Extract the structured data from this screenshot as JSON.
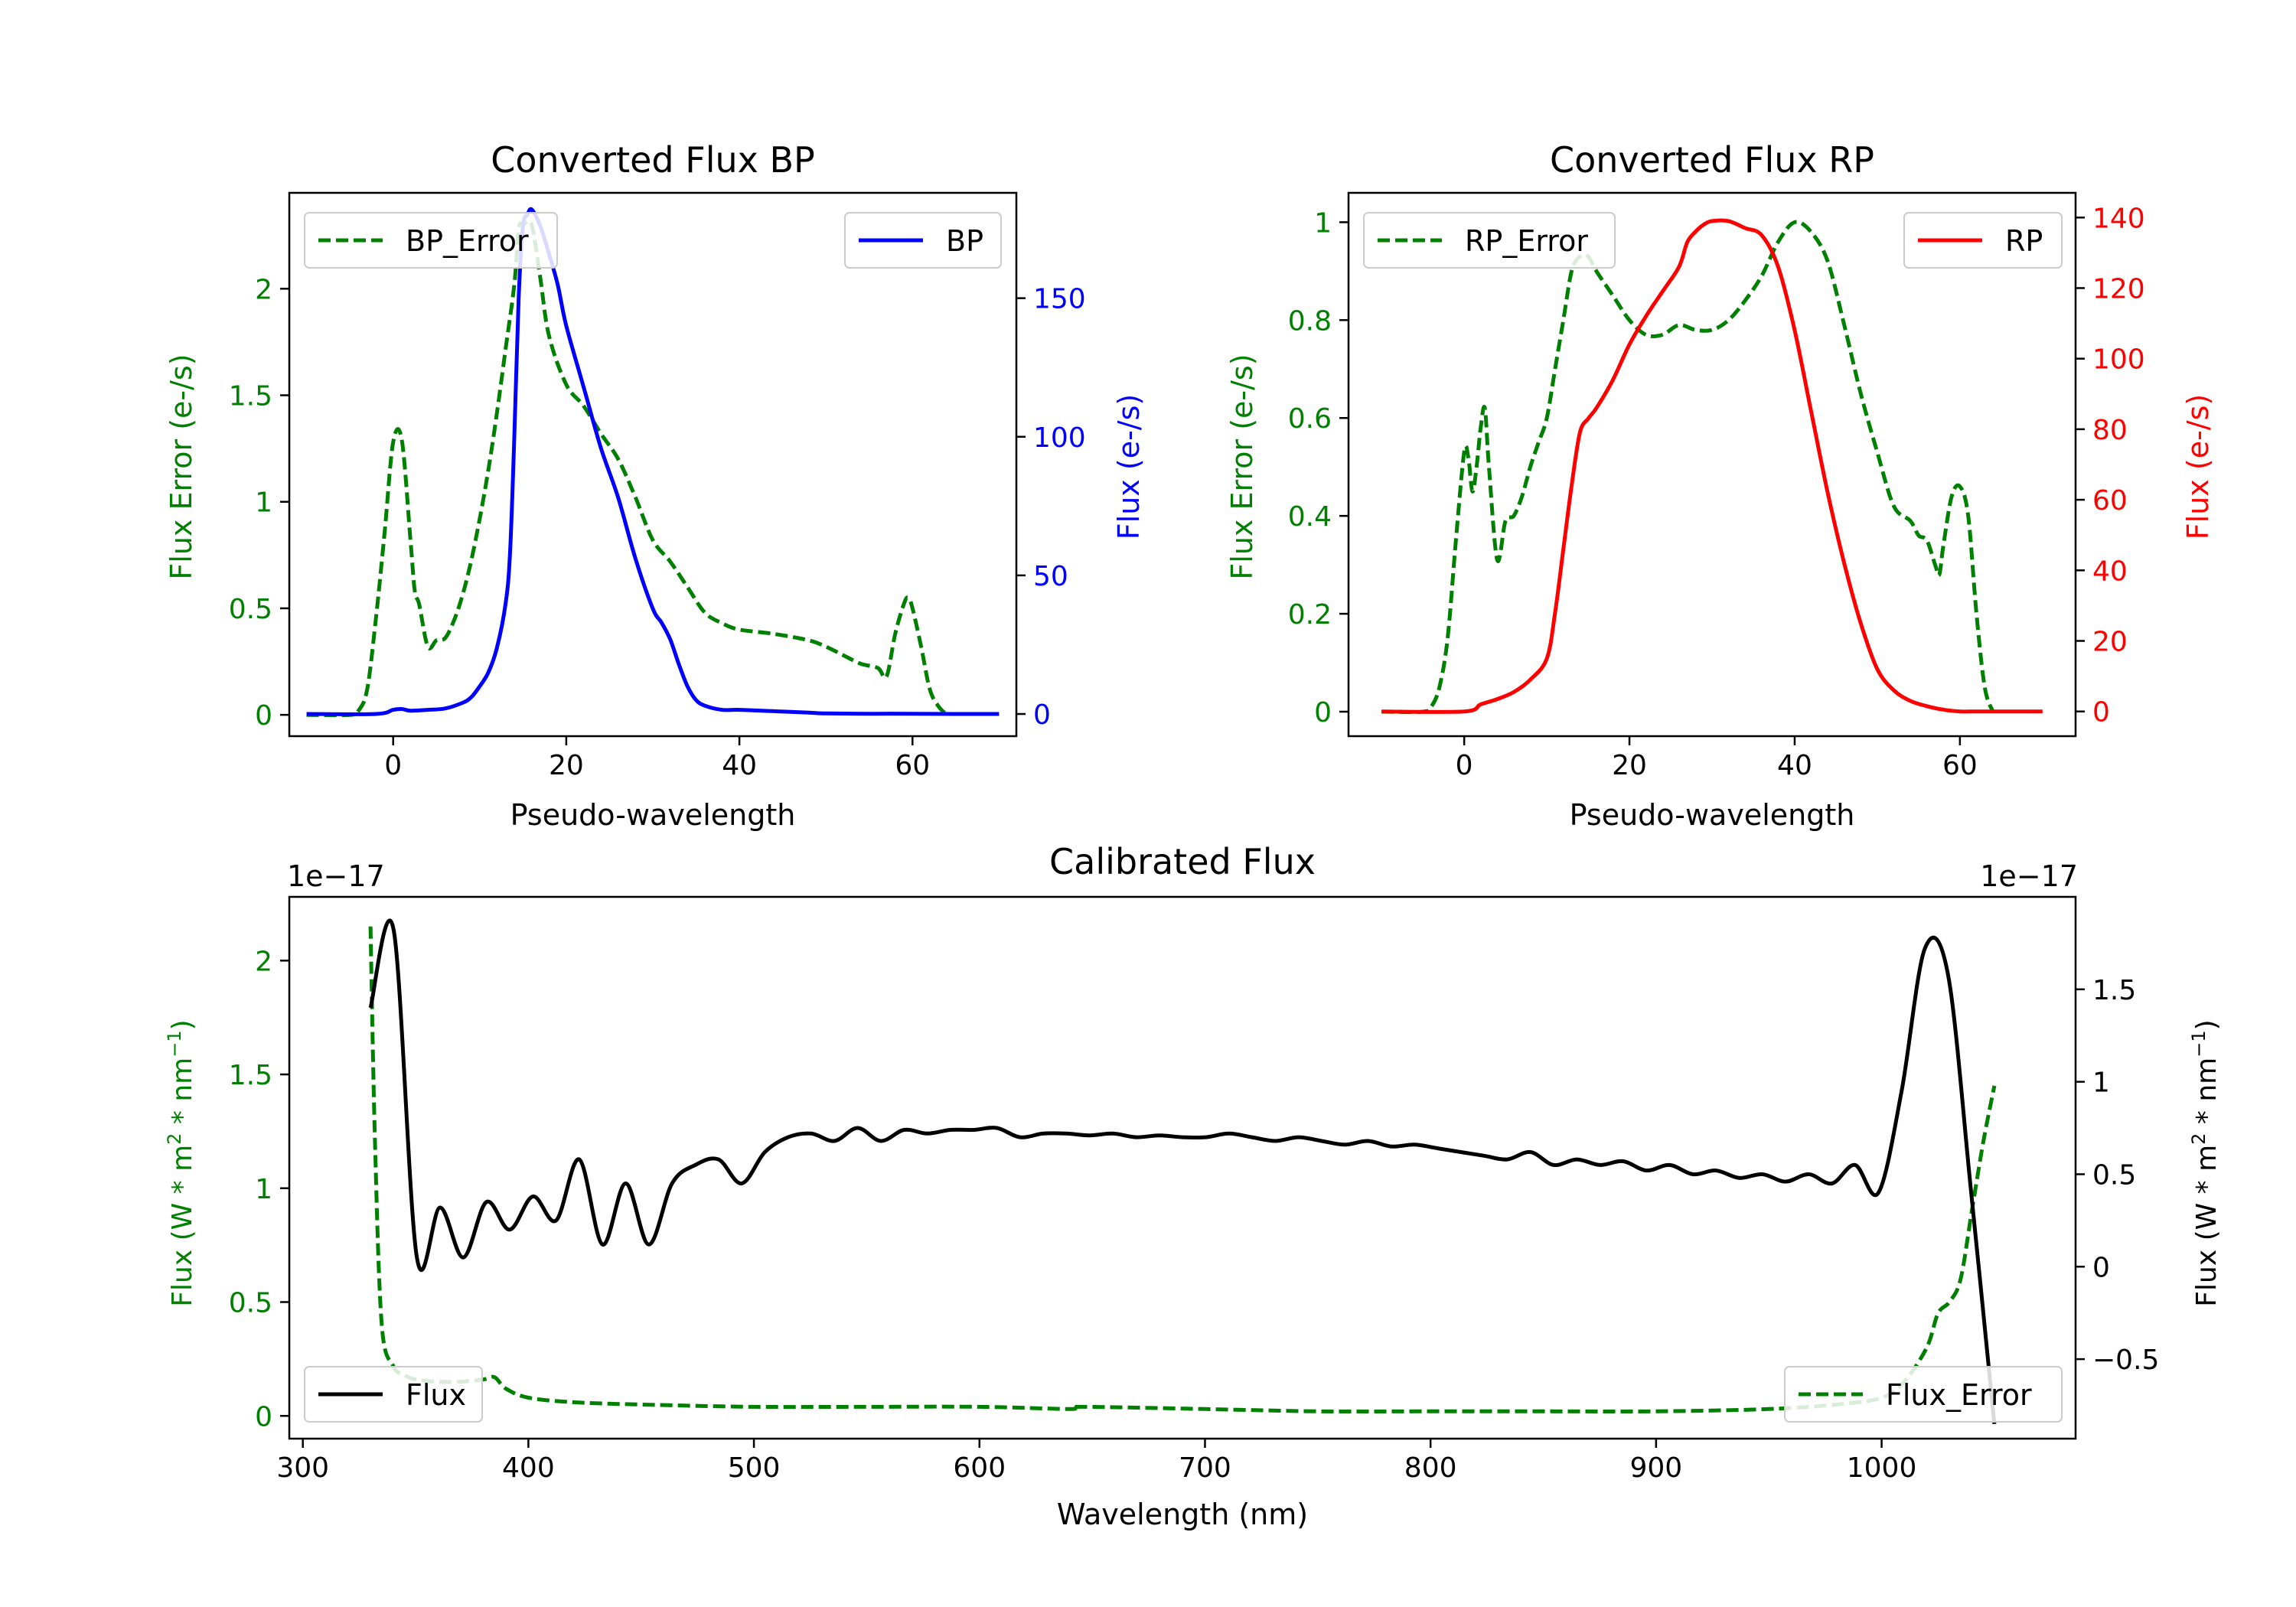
{
  "colors": {
    "error": "#008000",
    "bp": "#0000ff",
    "rp": "#ff0000",
    "flux": "#000000"
  },
  "chart_data": [
    {
      "type": "line",
      "title": "Converted Flux BP",
      "xlabel": "Pseudo-wavelength",
      "xlim": [
        -12,
        72
      ],
      "xticks": [
        0,
        20,
        40,
        60
      ],
      "ylabel_left": "Flux Error (e-/s)",
      "ylim_left": [
        -0.1,
        2.45
      ],
      "yticks_left": [
        0.0,
        0.5,
        1.0,
        1.5,
        2.0
      ],
      "ylabel_right": "Flux (e-/s)",
      "ylim_right": [
        -8,
        188
      ],
      "yticks_right": [
        0,
        50,
        100,
        150
      ],
      "series": [
        {
          "name": "BP_Error",
          "axis": "left",
          "style": "dashed",
          "color": "#008000",
          "x": [
            -10,
            -5,
            -4,
            -3,
            -2,
            -1,
            0,
            1,
            2,
            2.5,
            3,
            4,
            5,
            6,
            7,
            8,
            9,
            10,
            11,
            12,
            13,
            14,
            14.5,
            15,
            16,
            17,
            18,
            20,
            22,
            24,
            26,
            28,
            30,
            32,
            34,
            36,
            38,
            40,
            44,
            48,
            50,
            52,
            54,
            56,
            57,
            58,
            59,
            59.5,
            60,
            61,
            62,
            63,
            64
          ],
          "y": [
            0,
            0,
            0.02,
            0.12,
            0.45,
            0.85,
            1.28,
            1.29,
            0.82,
            0.58,
            0.52,
            0.32,
            0.35,
            0.36,
            0.44,
            0.56,
            0.72,
            0.92,
            1.15,
            1.42,
            1.72,
            2.02,
            2.28,
            2.3,
            2.3,
            2.05,
            1.78,
            1.55,
            1.45,
            1.32,
            1.2,
            1.02,
            0.82,
            0.72,
            0.6,
            0.48,
            0.43,
            0.4,
            0.38,
            0.35,
            0.32,
            0.28,
            0.24,
            0.22,
            0.18,
            0.38,
            0.52,
            0.55,
            0.5,
            0.32,
            0.12,
            0.04,
            0
          ],
          "ylim": [
            0,
            2.3
          ]
        },
        {
          "name": "BP",
          "axis": "right",
          "style": "solid",
          "color": "#0000ff",
          "x": [
            -10,
            -2,
            0,
            1,
            2,
            4,
            6,
            8,
            9,
            10,
            11,
            12,
            13,
            13.5,
            14,
            14.5,
            15,
            15.5,
            16,
            17,
            18,
            19,
            20,
            22,
            24,
            26,
            28,
            30,
            31,
            32,
            33,
            34,
            35,
            36,
            38,
            40,
            44,
            48,
            50,
            55,
            60,
            65,
            70
          ],
          "y": [
            0,
            0,
            1.5,
            1.8,
            1.2,
            1.5,
            2,
            4,
            6,
            10,
            15,
            24,
            40,
            58,
            100,
            150,
            176,
            180,
            182,
            176,
            166,
            155,
            140,
            118,
            96,
            78,
            56,
            38,
            33,
            27,
            18,
            10,
            5,
            3,
            1.5,
            1.5,
            1,
            0.5,
            0.2,
            0.1,
            0.1,
            0,
            0
          ],
          "ylim": [
            0,
            182
          ]
        }
      ],
      "legend": [
        {
          "label": "BP_Error",
          "position": "upper-left",
          "style": "dashed",
          "color": "#008000"
        },
        {
          "label": "BP",
          "position": "upper-right",
          "style": "solid",
          "color": "#0000ff"
        }
      ]
    },
    {
      "type": "line",
      "title": "Converted Flux RP",
      "xlabel": "Pseudo-wavelength",
      "xlim": [
        -14,
        74
      ],
      "xticks": [
        0,
        20,
        40,
        60
      ],
      "ylabel_left": "Flux Error (e-/s)",
      "ylim_left": [
        -0.05,
        1.06
      ],
      "yticks_left": [
        0.0,
        0.2,
        0.4,
        0.6,
        0.8,
        1.0
      ],
      "ylabel_right": "Flux (e-/s)",
      "ylim_right": [
        -7,
        147
      ],
      "yticks_right": [
        0,
        20,
        40,
        60,
        80,
        100,
        120,
        140
      ],
      "series": [
        {
          "name": "RP_Error",
          "axis": "left",
          "style": "dashed",
          "color": "#008000",
          "x": [
            -10,
            -5,
            -4,
            -3,
            -2,
            -1,
            0,
            0.5,
            1,
            1.5,
            2,
            2.5,
            3,
            4,
            5,
            6,
            7,
            8,
            9,
            10,
            11,
            12,
            13,
            14,
            15,
            16,
            18,
            20,
            22,
            24,
            26,
            28,
            30,
            32,
            34,
            36,
            38,
            40,
            42,
            44,
            46,
            48,
            50,
            52,
            54,
            55,
            56,
            57,
            57.5,
            58,
            59,
            60,
            61,
            62,
            63,
            64
          ],
          "y": [
            0,
            0,
            0.01,
            0.05,
            0.15,
            0.35,
            0.53,
            0.52,
            0.45,
            0.5,
            0.58,
            0.62,
            0.5,
            0.31,
            0.39,
            0.4,
            0.44,
            0.5,
            0.55,
            0.6,
            0.7,
            0.8,
            0.9,
            0.93,
            0.93,
            0.9,
            0.85,
            0.8,
            0.77,
            0.77,
            0.79,
            0.78,
            0.78,
            0.8,
            0.84,
            0.89,
            0.96,
            1.0,
            0.98,
            0.92,
            0.79,
            0.65,
            0.53,
            0.42,
            0.39,
            0.36,
            0.35,
            0.3,
            0.28,
            0.34,
            0.44,
            0.46,
            0.4,
            0.2,
            0.05,
            0
          ],
          "ylim": [
            0,
            1.0
          ]
        },
        {
          "name": "RP",
          "axis": "right",
          "style": "solid",
          "color": "#ff0000",
          "x": [
            -10,
            0,
            2,
            4,
            6,
            8,
            10,
            11,
            12,
            13,
            14,
            15,
            16,
            18,
            20,
            22,
            24,
            26,
            27,
            28,
            29,
            30,
            32,
            34,
            36,
            38,
            40,
            42,
            44,
            46,
            48,
            50,
            52,
            54,
            56,
            58,
            60,
            62,
            65,
            70
          ],
          "y": [
            0,
            0,
            2,
            3.5,
            5.5,
            9,
            15,
            28,
            46,
            64,
            79,
            83,
            86,
            94,
            104,
            112,
            119,
            126,
            133,
            136,
            138,
            139,
            139,
            137,
            135,
            126,
            108,
            85,
            62,
            42,
            25,
            12,
            6,
            3,
            1.5,
            0.5,
            0,
            0,
            0,
            0
          ],
          "ylim": [
            0,
            140
          ]
        }
      ],
      "legend": [
        {
          "label": "RP_Error",
          "position": "upper-left",
          "style": "dashed",
          "color": "#008000"
        },
        {
          "label": "RP",
          "position": "upper-right",
          "style": "solid",
          "color": "#ff0000"
        }
      ]
    },
    {
      "type": "line",
      "title": "Calibrated Flux",
      "xlabel": "Wavelength (nm)",
      "xlim": [
        294,
        1086
      ],
      "xticks": [
        300,
        400,
        500,
        600,
        700,
        800,
        900,
        1000
      ],
      "ylabel_left": "Flux (W * m^2 * nm^-1)",
      "ylim_left": [
        -0.1,
        2.28
      ],
      "yticks_left": [
        0.0,
        0.5,
        1.0,
        1.5,
        2.0
      ],
      "offset_left": "1e−17",
      "ylabel_right": "Flux (W * m^2 * nm^-1)",
      "ylim_right": [
        -0.93,
        2.0
      ],
      "yticks_right": [
        -0.5,
        0.0,
        0.5,
        1.0,
        1.5
      ],
      "offset_right": "1e−17",
      "series": [
        {
          "name": "Flux_Error",
          "axis": "left",
          "style": "dashed",
          "color": "#008000",
          "x": [
            330,
            332,
            335,
            340,
            345,
            350,
            360,
            370,
            380,
            385,
            390,
            400,
            420,
            450,
            500,
            550,
            600,
            640,
            645,
            700,
            750,
            800,
            850,
            900,
            950,
            980,
            1000,
            1010,
            1020,
            1025,
            1030,
            1035,
            1040,
            1045,
            1050
          ],
          "y": [
            2.15,
            1.2,
            0.4,
            0.22,
            0.18,
            0.16,
            0.15,
            0.15,
            0.16,
            0.17,
            0.12,
            0.08,
            0.06,
            0.05,
            0.04,
            0.04,
            0.04,
            0.03,
            0.04,
            0.03,
            0.02,
            0.02,
            0.02,
            0.02,
            0.03,
            0.05,
            0.08,
            0.15,
            0.3,
            0.45,
            0.5,
            0.6,
            0.9,
            1.2,
            1.45
          ]
        },
        {
          "name": "Flux",
          "axis": "right",
          "style": "solid",
          "color": "#000000",
          "x_start": 330,
          "x_end": 1050,
          "y": [
            1.4,
            1.82,
            0.05,
            0.32,
            0.05,
            0.35,
            0.2,
            0.38,
            0.25,
            0.58,
            0.12,
            0.45,
            0.12,
            0.45,
            0.55,
            0.58,
            0.45,
            0.62,
            0.7,
            0.72,
            0.68,
            0.75,
            0.68,
            0.74,
            0.72,
            0.74,
            0.74,
            0.75,
            0.7,
            0.72,
            0.72,
            0.71,
            0.72,
            0.7,
            0.71,
            0.7,
            0.7,
            0.72,
            0.7,
            0.68,
            0.7,
            0.68,
            0.66,
            0.68,
            0.65,
            0.66,
            0.64,
            0.62,
            0.6,
            0.58,
            0.62,
            0.55,
            0.58,
            0.55,
            0.57,
            0.52,
            0.55,
            0.5,
            0.52,
            0.48,
            0.5,
            0.46,
            0.5,
            0.45,
            0.55,
            0.4,
            0.95,
            1.72,
            1.58,
            0.4,
            -0.85
          ]
        }
      ],
      "legend": [
        {
          "label": "Flux",
          "position": "lower-left",
          "style": "solid",
          "color": "#000000"
        },
        {
          "label": "Flux_Error",
          "position": "lower-right",
          "style": "dashed",
          "color": "#008000"
        }
      ]
    }
  ]
}
